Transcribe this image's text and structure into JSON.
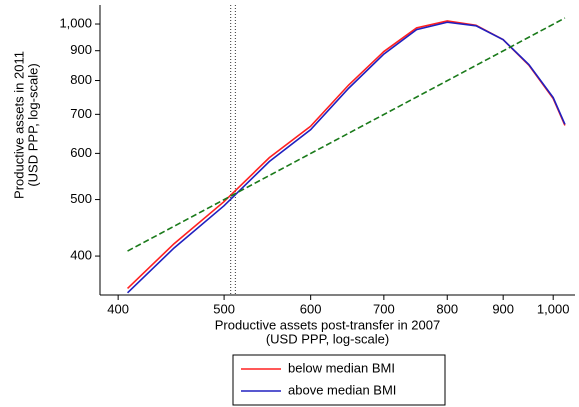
{
  "chart_data": {
    "type": "line",
    "xlabel": [
      "Productive assets post-transfer in 2007",
      "(USD PPP, log-scale)"
    ],
    "ylabel": [
      "Productive assets in 2011",
      "(USD PPP, log-scale)"
    ],
    "xscale": "log",
    "yscale": "log",
    "xlim": [
      385,
      1047
    ],
    "ylim": [
      343,
      1078
    ],
    "xticks": [
      400,
      500,
      600,
      700,
      800,
      900,
      {
        "value": 1000,
        "label": "1,000"
      }
    ],
    "yticks": [
      400,
      500,
      600,
      700,
      800,
      900,
      {
        "value": 1000,
        "label": "1,000"
      }
    ],
    "vlines": [
      507,
      512
    ],
    "legend": "below",
    "series": [
      {
        "name": "below median BMI",
        "color": "#ff2020",
        "style": "solid",
        "x": [
          408,
          450,
          500,
          550,
          600,
          650,
          700,
          750,
          800,
          850,
          900,
          950,
          1000,
          1025
        ],
        "values": [
          352,
          420,
          496,
          590,
          668,
          786,
          897,
          985,
          1012,
          995,
          940,
          850,
          745,
          670
        ]
      },
      {
        "name": "above median BMI",
        "color": "#2020c0",
        "style": "solid",
        "x": [
          408,
          450,
          500,
          550,
          600,
          650,
          700,
          750,
          800,
          850,
          900,
          950,
          1000,
          1025
        ],
        "values": [
          346,
          413,
          488,
          581,
          659,
          776,
          888,
          978,
          1007,
          993,
          940,
          852,
          748,
          673
        ]
      },
      {
        "color": "#1a7a1a",
        "style": "dashed",
        "x": [
          408,
          1025
        ],
        "values": [
          408,
          1024
        ]
      }
    ]
  }
}
